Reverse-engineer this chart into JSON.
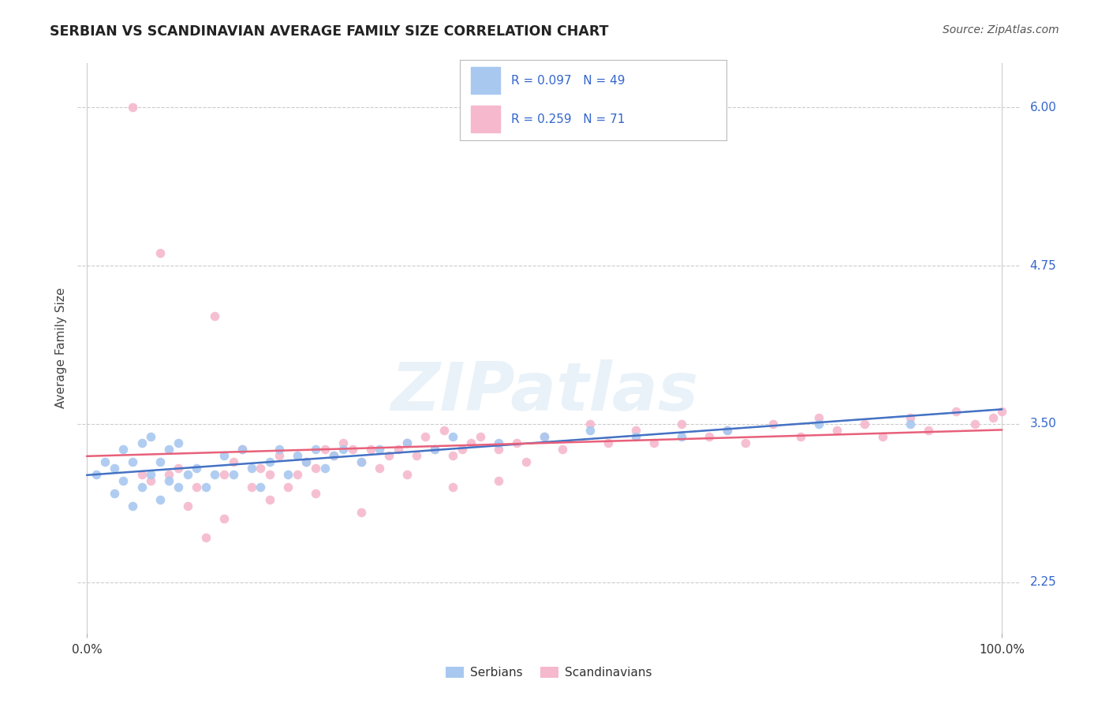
{
  "title": "SERBIAN VS SCANDINAVIAN AVERAGE FAMILY SIZE CORRELATION CHART",
  "source_text": "Source: ZipAtlas.com",
  "ylabel": "Average Family Size",
  "xlim": [
    0,
    100
  ],
  "ylim": [
    1.85,
    6.35
  ],
  "yticks": [
    2.25,
    3.5,
    4.75,
    6.0
  ],
  "watermark": "ZIPatlas",
  "legend_label1": "Serbians",
  "legend_label2": "Scandinavians",
  "blue_color": "#A8C8F0",
  "pink_color": "#F5B8CC",
  "line_blue": "#4472C4",
  "line_pink": "#E8607A",
  "title_color": "#222222",
  "source_color": "#555555",
  "legend_text_color": "#3366CC",
  "background_color": "#FFFFFF",
  "serbian_x": [
    1,
    2,
    3,
    3,
    4,
    4,
    5,
    5,
    6,
    6,
    7,
    7,
    8,
    8,
    9,
    9,
    10,
    10,
    11,
    12,
    13,
    14,
    15,
    16,
    17,
    18,
    19,
    20,
    21,
    22,
    23,
    24,
    25,
    26,
    27,
    28,
    30,
    32,
    35,
    38,
    40,
    45,
    50,
    55,
    60,
    65,
    70,
    80,
    90
  ],
  "serbian_y": [
    3.1,
    3.2,
    2.95,
    3.15,
    3.05,
    3.3,
    2.85,
    3.2,
    3.0,
    3.35,
    3.1,
    3.4,
    2.9,
    3.2,
    3.05,
    3.3,
    3.0,
    3.35,
    3.1,
    3.15,
    3.0,
    3.1,
    3.25,
    3.1,
    3.3,
    3.15,
    3.0,
    3.2,
    3.3,
    3.1,
    3.25,
    3.2,
    3.3,
    3.15,
    3.25,
    3.3,
    3.2,
    3.3,
    3.35,
    3.3,
    3.4,
    3.35,
    3.4,
    3.45,
    3.4,
    3.4,
    3.45,
    3.5,
    3.5
  ],
  "scand_x": [
    5,
    8,
    9,
    10,
    11,
    12,
    13,
    14,
    15,
    16,
    17,
    18,
    19,
    20,
    21,
    22,
    23,
    24,
    25,
    26,
    27,
    28,
    29,
    30,
    31,
    32,
    33,
    34,
    35,
    36,
    37,
    38,
    39,
    40,
    41,
    42,
    43,
    45,
    47,
    48,
    50,
    52,
    55,
    57,
    60,
    62,
    65,
    68,
    70,
    72,
    75,
    78,
    80,
    82,
    85,
    87,
    90,
    92,
    95,
    97,
    99,
    100,
    6,
    7,
    15,
    20,
    25,
    30,
    35,
    40,
    45
  ],
  "scand_y": [
    6.0,
    4.85,
    3.1,
    3.15,
    2.85,
    3.0,
    2.6,
    4.35,
    3.1,
    3.2,
    3.3,
    3.0,
    3.15,
    3.1,
    3.25,
    3.0,
    3.1,
    3.2,
    3.15,
    3.3,
    3.25,
    3.35,
    3.3,
    3.2,
    3.3,
    3.15,
    3.25,
    3.3,
    3.35,
    3.25,
    3.4,
    3.3,
    3.45,
    3.25,
    3.3,
    3.35,
    3.4,
    3.3,
    3.35,
    3.2,
    3.4,
    3.3,
    3.5,
    3.35,
    3.45,
    3.35,
    3.5,
    3.4,
    3.45,
    3.35,
    3.5,
    3.4,
    3.55,
    3.45,
    3.5,
    3.4,
    3.55,
    3.45,
    3.6,
    3.5,
    3.55,
    3.6,
    3.1,
    3.05,
    2.75,
    2.9,
    2.95,
    2.8,
    3.1,
    3.0,
    3.05
  ]
}
